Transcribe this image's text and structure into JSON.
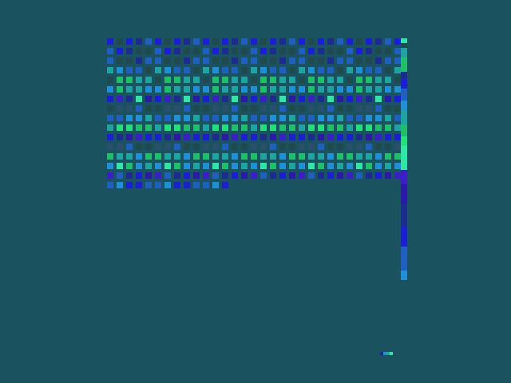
{
  "palette": {
    "background": "#1a535f",
    "deep_blue": "#1a1fd6",
    "navy": "#1b2b8f",
    "dark_teal": "#1f4a4e",
    "mid_blue": "#1f5fbf",
    "sky_blue": "#1f8fd6",
    "teal": "#1fa3a0",
    "green": "#1fbf6a",
    "bright_green": "#22e07a",
    "mint": "#2fe6a6",
    "indigo": "#3a1fc8",
    "violet": "#2a18a8",
    "slate": "#28506a"
  },
  "grid": {
    "columns": 31,
    "rows": 16,
    "last_row_length": 13,
    "row_palettes": [
      [
        "deep_blue",
        "navy",
        "dark_teal",
        "mid_blue",
        "deep_blue"
      ],
      [
        "deep_blue",
        "dark_teal",
        "navy",
        "mid_blue",
        "dark_teal"
      ],
      [
        "dark_teal",
        "mid_blue",
        "navy",
        "dark_teal",
        "mid_blue"
      ],
      [
        "mid_blue",
        "sky_blue",
        "dark_teal",
        "mid_blue",
        "teal"
      ],
      [
        "teal",
        "green",
        "dark_teal",
        "teal",
        "green"
      ],
      [
        "sky_blue",
        "teal",
        "green",
        "sky_blue",
        "teal"
      ],
      [
        "indigo",
        "violet",
        "navy",
        "deep_blue",
        "mint"
      ],
      [
        "slate",
        "dark_teal",
        "mid_blue",
        "slate",
        "dark_teal"
      ],
      [
        "sky_blue",
        "mid_blue",
        "teal",
        "sky_blue",
        "mid_blue"
      ],
      [
        "green",
        "bright_green",
        "teal",
        "green",
        "bright_green"
      ],
      [
        "deep_blue",
        "indigo",
        "navy",
        "deep_blue",
        "violet"
      ],
      [
        "slate",
        "dark_teal",
        "mid_blue",
        "slate",
        "dark_teal"
      ],
      [
        "teal",
        "green",
        "sky_blue",
        "teal",
        "green"
      ],
      [
        "sky_blue",
        "mint",
        "teal",
        "green",
        "sky_blue"
      ],
      [
        "violet",
        "navy",
        "indigo",
        "deep_blue",
        "mid_blue"
      ],
      [
        "mid_blue",
        "deep_blue",
        "sky_blue",
        "mid_blue",
        "deep_blue"
      ]
    ]
  },
  "strip": {
    "segments": [
      {
        "color": "mint",
        "count": 2
      },
      {
        "color": "dark_teal",
        "count": 2
      },
      {
        "color": "teal",
        "count": 4
      },
      {
        "color": "green",
        "count": 6
      },
      {
        "color": "navy",
        "count": 3
      },
      {
        "color": "deep_blue",
        "count": 4
      },
      {
        "color": "mid_blue",
        "count": 5
      },
      {
        "color": "sky_blue",
        "count": 4
      },
      {
        "color": "teal",
        "count": 6
      },
      {
        "color": "green",
        "count": 5
      },
      {
        "color": "bright_green",
        "count": 4
      },
      {
        "color": "mint",
        "count": 10
      },
      {
        "color": "indigo",
        "count": 6
      },
      {
        "color": "violet",
        "count": 8
      },
      {
        "color": "navy",
        "count": 10
      },
      {
        "color": "deep_blue",
        "count": 8
      },
      {
        "color": "mid_blue",
        "count": 10
      },
      {
        "color": "sky_blue",
        "count": 4
      }
    ]
  },
  "marker": {
    "colors": [
      "navy",
      "sky_blue",
      "teal",
      "mint"
    ]
  }
}
